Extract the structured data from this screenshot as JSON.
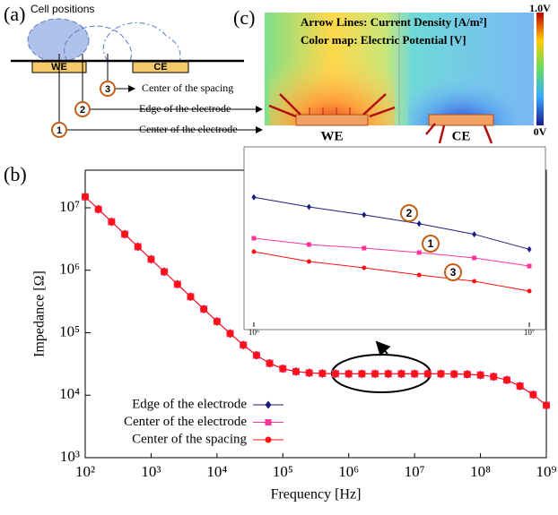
{
  "panel_a": {
    "label": "(a)",
    "cell_positions": "Cell positions",
    "we": "WE",
    "ce": "CE",
    "callouts": [
      {
        "num": "3",
        "text": "Center of the spacing"
      },
      {
        "num": "2",
        "text": "Edge of the electrode"
      },
      {
        "num": "1",
        "text": "Center of the electrode"
      }
    ]
  },
  "panel_c": {
    "label": "(c)",
    "line1": "Arrow Lines: Current Density [A/m²]",
    "line2": "Color map: Electric Potential [V]",
    "scale_max": "1.0V",
    "scale_min": "0V",
    "we": "WE",
    "ce": "CE"
  },
  "chart_data": [
    {
      "type": "line",
      "panel_label": "(b)",
      "x_label": "Frequency [Hz]",
      "y_label": "Impedance [Ω]",
      "log_x": true,
      "log_y": true,
      "legend": "lower left",
      "x": [
        100,
        158.5,
        251.2,
        398.1,
        631,
        1000,
        1585,
        2512,
        3981,
        6310,
        10000,
        15850,
        25120,
        39810,
        63100,
        100000,
        158500,
        251200,
        398100,
        631000,
        1000000,
        1585000,
        2512000,
        3981000,
        6310000,
        10000000,
        15850000,
        25120000,
        39810000,
        63100000,
        100000000,
        158500000,
        251200000,
        398100000,
        631000000,
        1000000000
      ],
      "xlim": [
        100,
        1000000000
      ],
      "xticks": [
        {
          "value": 100,
          "label": "10²"
        },
        {
          "value": 1000,
          "label": "10³"
        },
        {
          "value": 10000,
          "label": "10⁴"
        },
        {
          "value": 100000,
          "label": "10⁵"
        },
        {
          "value": 1000000,
          "label": "10⁶"
        },
        {
          "value": 10000000,
          "label": "10⁷"
        },
        {
          "value": 100000000,
          "label": "10⁸"
        },
        {
          "value": 1000000000,
          "label": "10⁹"
        }
      ],
      "ylim": [
        1000,
        40000000
      ],
      "yticks": [
        {
          "value": 1000,
          "label": "10³"
        },
        {
          "value": 10000,
          "label": "10⁴"
        },
        {
          "value": 100000,
          "label": "10⁵"
        },
        {
          "value": 1000000,
          "label": "10⁶"
        },
        {
          "value": 10000000,
          "label": "10⁷"
        }
      ],
      "series": [
        {
          "name": "Edge of the electrode",
          "color": "#1a1a80",
          "marker": "diamond",
          "values": [
            15000000,
            9460000,
            5970000,
            3770000,
            2380000,
            1500000,
            946000,
            597000,
            377000,
            239000,
            151600,
            97100,
            63600,
            43600,
            32400,
            26600,
            23900,
            22800,
            22300,
            22100,
            22000,
            22000,
            22000,
            22000,
            22000,
            22000,
            22000,
            22000,
            21800,
            21600,
            21000,
            19800,
            17500,
            14000,
            10200,
            6900
          ]
        },
        {
          "name": "Center of the electrode",
          "color": "#ff3399",
          "marker": "square",
          "values": [
            15000000,
            9460000,
            5970000,
            3770000,
            2380000,
            1500000,
            946000,
            597000,
            377000,
            239000,
            151600,
            97100,
            63600,
            43600,
            32400,
            26600,
            23900,
            22800,
            22300,
            22100,
            22000,
            22000,
            22000,
            22000,
            22000,
            22000,
            22000,
            22000,
            21800,
            21600,
            21000,
            19800,
            17500,
            14000,
            10200,
            6900
          ]
        },
        {
          "name": "Center of the spacing",
          "color": "#ff1111",
          "marker": "circle",
          "values": [
            15000000,
            9460000,
            5970000,
            3770000,
            2380000,
            1500000,
            946000,
            597000,
            377000,
            239000,
            151600,
            97100,
            63600,
            43600,
            32400,
            26600,
            23900,
            22800,
            22300,
            22100,
            22000,
            22000,
            22000,
            22000,
            22000,
            22000,
            22000,
            22000,
            21800,
            21600,
            21000,
            19800,
            17500,
            14000,
            10200,
            6900
          ]
        }
      ]
    },
    {
      "type": "line",
      "log_x": true,
      "x": [
        1000000,
        1585000,
        2512000,
        3981000,
        6310000,
        10000000
      ],
      "xlim": [
        1000000,
        10000000
      ],
      "xticks": [
        {
          "value": 1000000,
          "label": "10⁶"
        },
        {
          "value": 10000000,
          "label": "10⁷"
        }
      ],
      "ylim": [
        21500,
        23500
      ],
      "annotations": [
        "2",
        "1",
        "3"
      ],
      "series": [
        {
          "name": "Edge of the electrode",
          "color": "#1a1a80",
          "marker": "diamond",
          "values": [
            22970,
            22860,
            22770,
            22670,
            22550,
            22380
          ]
        },
        {
          "name": "Center of the electrode",
          "color": "#ff3399",
          "marker": "square",
          "values": [
            22505,
            22434,
            22393,
            22343,
            22282,
            22190
          ]
        },
        {
          "name": "Center of the spacing",
          "color": "#ff1111",
          "marker": "circle",
          "values": [
            22353,
            22241,
            22170,
            22089,
            22018,
            21906
          ]
        }
      ]
    }
  ]
}
